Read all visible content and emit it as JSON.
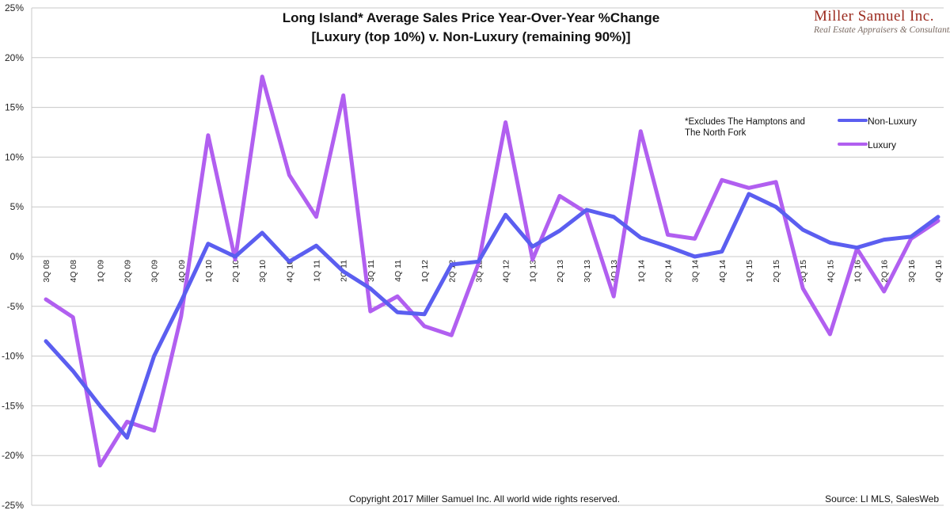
{
  "brand": {
    "name": "Miller Samuel Inc.",
    "tagline": "Real Estate Appraisers & Consultants"
  },
  "note": {
    "line1": "*Excludes The Hamptons and",
    "line2": "The North Fork"
  },
  "footer": {
    "copyright": "Copyright 2017 Miller Samuel Inc.  All world wide rights reserved.",
    "source": "Source: LI MLS, SalesWeb"
  },
  "colors": {
    "non_luxury": "#5b5ef0",
    "luxury": "#b15ff0",
    "grid": "#c8c8c8"
  },
  "chart_data": {
    "type": "line",
    "title": "Long Island* Average Sales Price Year-Over-Year %Change",
    "subtitle": "[Luxury (top 10%) v. Non-Luxury (remaining 90%)]",
    "xlabel": "",
    "ylabel": "",
    "ylim": [
      -25,
      25
    ],
    "yticks": [
      25,
      20,
      15,
      10,
      5,
      0,
      -5,
      -10,
      -15,
      -20,
      -25
    ],
    "ytick_labels": [
      "25%",
      "20%",
      "15%",
      "10%",
      "5%",
      "0%",
      "-5%",
      "-10%",
      "-15%",
      "-20%",
      "-25%"
    ],
    "grid": true,
    "legend_position": "top-right",
    "categories": [
      "3Q 08",
      "4Q 08",
      "1Q 09",
      "2Q 09",
      "3Q 09",
      "4Q 09",
      "1Q 10",
      "2Q 10",
      "3Q 10",
      "4Q 10",
      "1Q 11",
      "2Q 11",
      "3Q 11",
      "4Q 11",
      "1Q 12",
      "2Q 12",
      "3Q 12",
      "4Q 12",
      "1Q 13",
      "2Q 13",
      "3Q 13",
      "4Q 13",
      "1Q 14",
      "2Q 14",
      "3Q 14",
      "4Q 14",
      "1Q 15",
      "2Q 15",
      "3Q 15",
      "4Q 15",
      "1Q 16",
      "2Q 16",
      "3Q 16",
      "4Q 16"
    ],
    "series": [
      {
        "name": "Non-Luxury",
        "values": [
          -8.5,
          -11.5,
          -15.0,
          -18.2,
          -10.0,
          -4.5,
          1.3,
          0.0,
          2.4,
          -0.5,
          1.1,
          -1.5,
          -3.2,
          -5.6,
          -5.8,
          -0.8,
          -0.5,
          4.2,
          1.0,
          2.6,
          4.7,
          4.0,
          1.9,
          1.0,
          0.0,
          0.5,
          6.3,
          5.0,
          2.7,
          1.4,
          0.9,
          1.7,
          2.0,
          4.0
        ]
      },
      {
        "name": "Luxury",
        "values": [
          -4.3,
          -6.1,
          -21.0,
          -16.6,
          -17.5,
          -6.0,
          12.2,
          -0.3,
          18.1,
          8.2,
          4.0,
          16.2,
          -5.5,
          -4.0,
          -7.0,
          -7.9,
          -0.7,
          13.5,
          -0.3,
          6.1,
          4.4,
          -4.0,
          12.6,
          2.2,
          1.8,
          7.7,
          6.9,
          7.5,
          -3.2,
          -7.8,
          0.8,
          -3.5,
          1.8,
          3.6
        ]
      }
    ]
  }
}
